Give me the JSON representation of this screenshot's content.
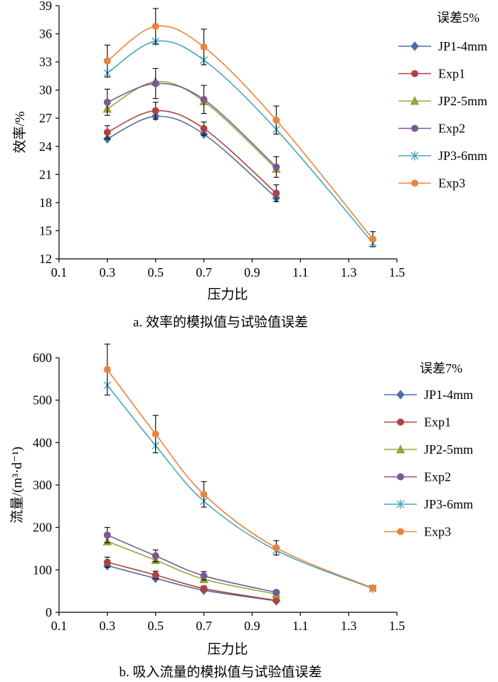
{
  "chart_data": [
    {
      "type": "line",
      "title": "",
      "caption": "a. 效率的模拟值与试验值误差",
      "xlabel": "压力比",
      "ylabel": "效率/%",
      "legend_title": "误差5%",
      "xlim": [
        0.1,
        1.5
      ],
      "ylim": [
        12,
        39
      ],
      "xticks": [
        "0.1",
        "0.3",
        "0.5",
        "0.7",
        "0.9",
        "1.1",
        "1.3",
        "1.5"
      ],
      "yticks": [
        "12",
        "15",
        "18",
        "21",
        "24",
        "27",
        "30",
        "33",
        "36",
        "39"
      ],
      "series": [
        {
          "name": "JP1-4mm",
          "color": "#4a6fa5",
          "marker": "diamond",
          "x": [
            0.3,
            0.5,
            0.7,
            1.0
          ],
          "values": [
            24.8,
            27.2,
            25.3,
            18.5
          ],
          "err": []
        },
        {
          "name": "Exp1",
          "color": "#b24040",
          "marker": "circle",
          "x": [
            0.3,
            0.5,
            0.7,
            1.0
          ],
          "values": [
            25.5,
            27.8,
            25.9,
            19.0
          ],
          "err": [
            0.7,
            0.9,
            0.7,
            0.9
          ]
        },
        {
          "name": "JP2-5mm",
          "color": "#93a83c",
          "marker": "triangle",
          "x": [
            0.3,
            0.5,
            0.7,
            1.0
          ],
          "values": [
            28.0,
            30.9,
            28.8,
            21.6
          ],
          "err": []
        },
        {
          "name": "Exp2",
          "color": "#7b5894",
          "marker": "circle",
          "x": [
            0.3,
            0.5,
            0.7,
            1.0
          ],
          "values": [
            28.7,
            30.7,
            29.0,
            21.8
          ],
          "err": [
            1.4,
            1.6,
            1.5,
            1.1
          ]
        },
        {
          "name": "JP3-6mm",
          "color": "#4aa6c0",
          "marker": "asterisk",
          "x": [
            0.3,
            0.5,
            0.7,
            1.0,
            1.4
          ],
          "values": [
            31.8,
            35.2,
            33.2,
            25.8,
            13.7
          ],
          "err": []
        },
        {
          "name": "Exp3",
          "color": "#e9843b",
          "marker": "circle",
          "x": [
            0.3,
            0.5,
            0.7,
            1.0,
            1.4
          ],
          "values": [
            33.1,
            36.8,
            34.6,
            26.8,
            14.1
          ],
          "err": [
            1.7,
            1.9,
            1.9,
            1.5,
            0.8
          ]
        }
      ]
    },
    {
      "type": "line",
      "title": "",
      "caption": "b. 吸入流量的模拟值与试验值误差",
      "xlabel": "压力比",
      "ylabel": "流量/(m³·d⁻¹)",
      "legend_title": "误差7%",
      "xlim": [
        0.1,
        1.5
      ],
      "ylim": [
        0,
        600
      ],
      "xticks": [
        "0.1",
        "0.3",
        "0.5",
        "0.7",
        "0.9",
        "1.1",
        "1.3",
        "1.5"
      ],
      "yticks": [
        "0",
        "100",
        "200",
        "300",
        "400",
        "500",
        "600"
      ],
      "series": [
        {
          "name": "JP1-4mm",
          "color": "#4a6fa5",
          "marker": "diamond",
          "x": [
            0.3,
            0.5,
            0.7,
            1.0
          ],
          "values": [
            110,
            80,
            52,
            27
          ],
          "err": []
        },
        {
          "name": "Exp1",
          "color": "#b24040",
          "marker": "circle",
          "x": [
            0.3,
            0.5,
            0.7,
            1.0
          ],
          "values": [
            118,
            88,
            56,
            28
          ],
          "err": [
            12,
            9,
            6,
            3
          ]
        },
        {
          "name": "JP2-5mm",
          "color": "#93a83c",
          "marker": "triangle",
          "x": [
            0.3,
            0.5,
            0.7,
            1.0
          ],
          "values": [
            167,
            123,
            78,
            43
          ],
          "err": []
        },
        {
          "name": "Exp2",
          "color": "#7b5894",
          "marker": "circle",
          "x": [
            0.3,
            0.5,
            0.7,
            1.0
          ],
          "values": [
            182,
            133,
            86,
            47
          ],
          "err": [
            18,
            14,
            10,
            5
          ]
        },
        {
          "name": "JP3-6mm",
          "color": "#4aa6c0",
          "marker": "asterisk",
          "x": [
            0.3,
            0.5,
            0.7,
            1.0,
            1.4
          ],
          "values": [
            535,
            393,
            262,
            146,
            56
          ],
          "err": []
        },
        {
          "name": "Exp3",
          "color": "#e9843b",
          "marker": "circle",
          "x": [
            0.3,
            0.5,
            0.7,
            1.0,
            1.4
          ],
          "values": [
            572,
            420,
            278,
            152,
            57
          ],
          "err": [
            60,
            44,
            30,
            17,
            6
          ]
        }
      ]
    }
  ]
}
